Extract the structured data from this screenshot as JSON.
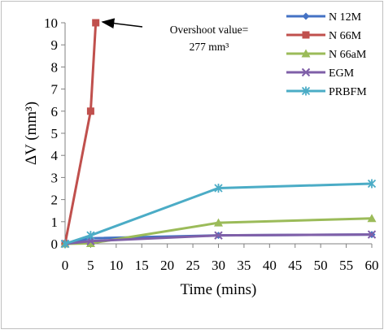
{
  "chart_data": {
    "type": "line",
    "xlabel": "Time (mins)",
    "ylabel": "ΔV (mm³)",
    "x_ticks": [
      "0",
      "5",
      "10",
      "15",
      "20",
      "25",
      "30",
      "35",
      "40",
      "45",
      "50",
      "55",
      "60"
    ],
    "y_ticks": [
      "0",
      "1",
      "2",
      "3",
      "4",
      "5",
      "6",
      "7",
      "8",
      "9",
      "10"
    ],
    "xlim": [
      0,
      60
    ],
    "ylim": [
      0,
      10
    ],
    "grid": false,
    "legend_position": "top-right",
    "annotation": {
      "line1": "Overshoot value=",
      "line2": "277 mm³"
    },
    "series": [
      {
        "name": "N 12M",
        "color": "#4472C4",
        "marker": "diamond",
        "x": [
          0,
          5,
          30,
          60
        ],
        "y": [
          0,
          0.25,
          0.38,
          0.42
        ]
      },
      {
        "name": "N 66M",
        "color": "#C0504D",
        "marker": "square",
        "x": [
          0,
          5,
          6
        ],
        "y": [
          0,
          6.0,
          10
        ]
      },
      {
        "name": "N 66aM",
        "color": "#9BBB59",
        "marker": "triangle",
        "x": [
          0,
          5,
          30,
          60
        ],
        "y": [
          0,
          0.02,
          0.95,
          1.15
        ]
      },
      {
        "name": "EGM",
        "color": "#7F5FA8",
        "marker": "x",
        "x": [
          0,
          5,
          30,
          60
        ],
        "y": [
          0,
          0.12,
          0.38,
          0.42
        ]
      },
      {
        "name": "PRBFM",
        "color": "#4BACC6",
        "marker": "star",
        "x": [
          0,
          5,
          30,
          60
        ],
        "y": [
          0,
          0.38,
          2.52,
          2.72
        ]
      }
    ]
  }
}
